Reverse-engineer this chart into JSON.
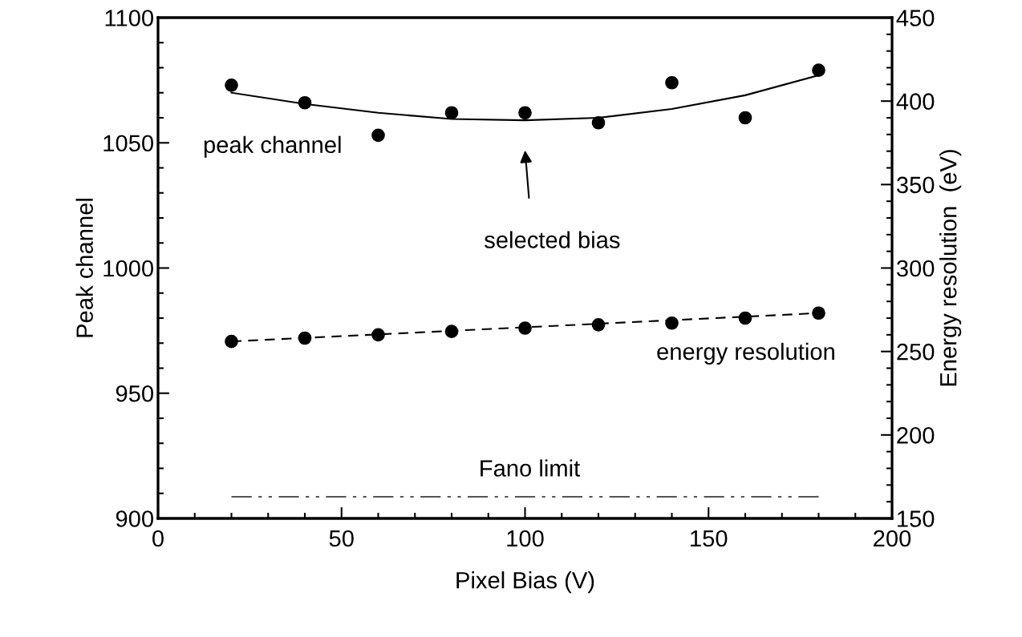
{
  "chart_data": {
    "type": "scatter",
    "xlabel": "Pixel Bias (V)",
    "ylabel": "Peak channel",
    "y2label": "Energy resolution  (eV)",
    "xlim": [
      0,
      200
    ],
    "xticks": [
      0,
      50,
      100,
      150,
      200
    ],
    "ylim": [
      900,
      1100
    ],
    "yticks": [
      900,
      950,
      1000,
      1050,
      1100
    ],
    "y2lim": [
      150,
      450
    ],
    "y2ticks": [
      150,
      200,
      250,
      300,
      350,
      400,
      450
    ],
    "grid": false,
    "marker": "circle",
    "series": [
      {
        "color": "#000000",
        "x": [
          20,
          40,
          60,
          80,
          100,
          120,
          140,
          160,
          180
        ],
        "values": [
          1073,
          1066,
          1053,
          1062,
          1062,
          1058,
          1074,
          1060,
          1079
        ]
      },
      {
        "type": "line",
        "color": "#000000",
        "line_style": "solid",
        "marker": "none",
        "x": [
          20,
          40,
          60,
          80,
          100,
          120,
          140,
          160,
          180
        ],
        "values": [
          1070,
          1065.5,
          1062,
          1059.5,
          1059,
          1060,
          1063.5,
          1069,
          1077
        ]
      },
      {
        "axis": "y2",
        "color": "#000000",
        "x": [
          20,
          40,
          60,
          80,
          100,
          120,
          140,
          160,
          180
        ],
        "values": [
          256,
          258,
          260,
          262,
          264,
          266,
          267,
          270,
          273
        ]
      },
      {
        "type": "line",
        "axis": "y2",
        "color": "#000000",
        "line_style": "dashed",
        "marker": "none",
        "x": [
          20,
          180
        ],
        "values": [
          256,
          273
        ]
      },
      {
        "type": "line",
        "axis": "y2",
        "color": "#555555",
        "line_style": "dashdot",
        "marker": "none",
        "x": [
          20,
          180
        ],
        "values": [
          163,
          163
        ]
      }
    ],
    "annotations": [
      "peak channel",
      "selected bias",
      "energy resolution",
      "Fano limit"
    ]
  }
}
